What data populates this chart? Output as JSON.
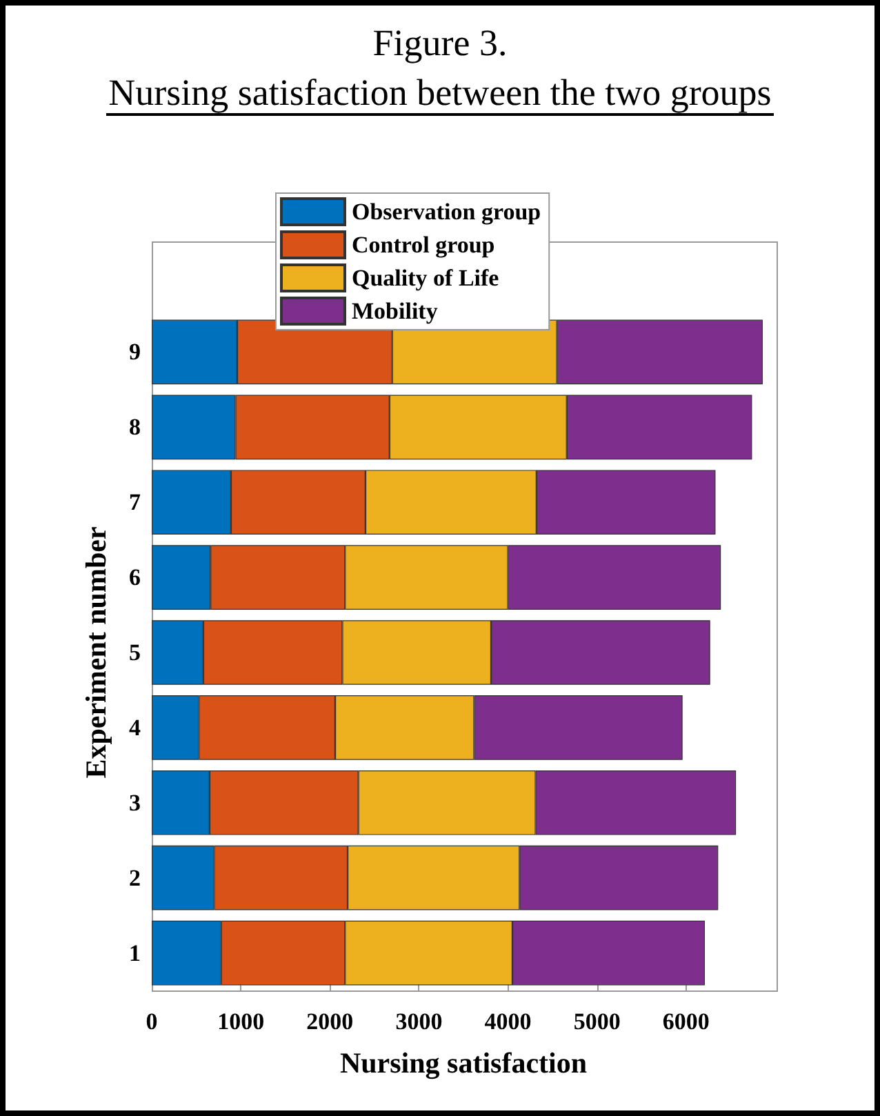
{
  "chart_data": {
    "type": "bar",
    "orientation": "horizontal",
    "stacked": true,
    "title": "Figure 3.",
    "subtitle": "Nursing satisfaction between the two groups",
    "xlabel": "Nursing satisfaction",
    "ylabel": "Experiment number",
    "categories": [
      "9",
      "8",
      "7",
      "6",
      "5",
      "4",
      "3",
      "2",
      "1"
    ],
    "series": [
      {
        "name": "Observation group",
        "color": "#0072bd",
        "values": [
          960,
          940,
          890,
          660,
          580,
          530,
          650,
          700,
          780
        ]
      },
      {
        "name": "Control group",
        "color": "#d95319",
        "values": [
          1740,
          1730,
          1510,
          1510,
          1560,
          1530,
          1670,
          1500,
          1390
        ]
      },
      {
        "name": "Quality of Life",
        "color": "#edb120",
        "values": [
          1850,
          1990,
          1920,
          1830,
          1670,
          1560,
          1990,
          1930,
          1880
        ]
      },
      {
        "name": "Mobility",
        "color": "#7e2f8e",
        "values": [
          2310,
          2080,
          2010,
          2390,
          2460,
          2340,
          2250,
          2230,
          2160
        ]
      }
    ],
    "xlim": [
      0,
      7000
    ],
    "xticks": [
      0,
      1000,
      2000,
      3000,
      4000,
      5000,
      6000
    ],
    "grid": false,
    "legend": "top"
  }
}
